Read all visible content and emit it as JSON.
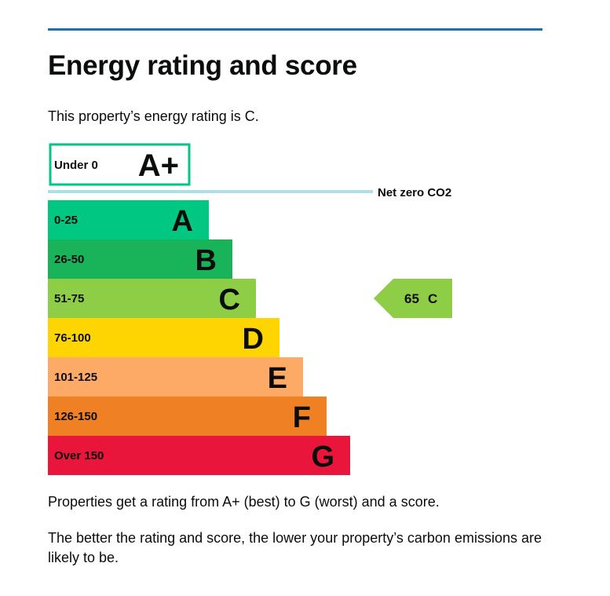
{
  "page": {
    "title": "Energy rating and score",
    "intro": "This property’s energy rating is C.",
    "paragraph1": "Properties get a rating from A+ (best) to G (worst) and a score.",
    "paragraph2": "The better the rating and score, the lower your property’s carbon emissions are likely to be."
  },
  "colors": {
    "rule": "#1d70b8",
    "net_zero_line": "#b1dde6",
    "A+": "#00c781",
    "A": "#00c781",
    "B": "#19b459",
    "C": "#8dce46",
    "D": "#ffd500",
    "E": "#fcaa65",
    "F": "#ef8023",
    "G": "#e9153b"
  },
  "chart_data": {
    "type": "bar",
    "top_band": {
      "range": "Under 0",
      "letter": "A+",
      "style": "outlined"
    },
    "net_zero_label": "Net zero CO2",
    "bands": [
      {
        "range": "0-25",
        "letter": "A"
      },
      {
        "range": "26-50",
        "letter": "B"
      },
      {
        "range": "51-75",
        "letter": "C"
      },
      {
        "range": "76-100",
        "letter": "D"
      },
      {
        "range": "101-125",
        "letter": "E"
      },
      {
        "range": "126-150",
        "letter": "F"
      },
      {
        "range": "Over 150",
        "letter": "G"
      }
    ],
    "current": {
      "score": 65,
      "score_label": "65",
      "letter": "C"
    }
  }
}
